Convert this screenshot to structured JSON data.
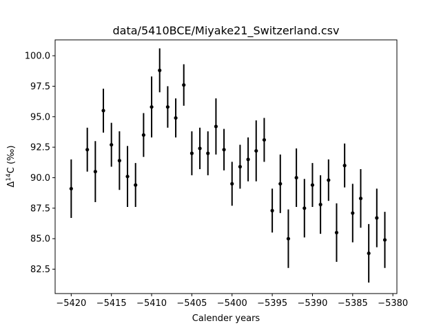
{
  "chart_data": {
    "type": "scatter",
    "title": "data/5410BCE/Miyake21_Switzerland.csv",
    "xlabel": "Calender years",
    "ylabel_parts": {
      "main": "Δ",
      "sup": "14",
      "rest": "C (‰)"
    },
    "xlim": [
      -5422,
      -5379.5
    ],
    "ylim": [
      80.5,
      101.3
    ],
    "xticks": [
      -5420,
      -5415,
      -5410,
      -5405,
      -5400,
      -5395,
      -5390,
      -5385,
      -5380
    ],
    "yticks": [
      82.5,
      85.0,
      87.5,
      90.0,
      92.5,
      95.0,
      97.5,
      100.0
    ],
    "xtick_labels": [
      "−5420",
      "−5415",
      "−5410",
      "−5405",
      "−5400",
      "−5395",
      "−5390",
      "−5385",
      "−5380"
    ],
    "ytick_labels": [
      "82.5",
      "85.0",
      "87.5",
      "90.0",
      "92.5",
      "95.0",
      "97.5",
      "100.0"
    ],
    "marker_color": "#000000",
    "grid": false,
    "points": [
      {
        "x": -5420,
        "y": 89.1,
        "err": 2.4
      },
      {
        "x": -5418,
        "y": 92.3,
        "err": 1.8
      },
      {
        "x": -5417,
        "y": 90.5,
        "err": 2.5
      },
      {
        "x": -5416,
        "y": 95.5,
        "err": 1.8
      },
      {
        "x": -5415,
        "y": 92.7,
        "err": 1.8
      },
      {
        "x": -5414,
        "y": 91.4,
        "err": 2.4
      },
      {
        "x": -5413,
        "y": 90.1,
        "err": 2.5
      },
      {
        "x": -5412,
        "y": 89.4,
        "err": 1.8
      },
      {
        "x": -5411,
        "y": 93.5,
        "err": 1.8
      },
      {
        "x": -5410,
        "y": 95.8,
        "err": 2.5
      },
      {
        "x": -5409,
        "y": 98.8,
        "err": 1.8
      },
      {
        "x": -5408,
        "y": 95.8,
        "err": 1.7
      },
      {
        "x": -5407,
        "y": 94.9,
        "err": 1.6
      },
      {
        "x": -5406,
        "y": 97.6,
        "err": 1.7
      },
      {
        "x": -5405,
        "y": 92.0,
        "err": 1.8
      },
      {
        "x": -5404,
        "y": 92.4,
        "err": 1.7
      },
      {
        "x": -5403,
        "y": 92.0,
        "err": 1.8
      },
      {
        "x": -5402,
        "y": 94.2,
        "err": 2.3
      },
      {
        "x": -5401,
        "y": 92.3,
        "err": 1.7
      },
      {
        "x": -5400,
        "y": 89.5,
        "err": 1.8
      },
      {
        "x": -5399,
        "y": 90.9,
        "err": 1.8
      },
      {
        "x": -5398,
        "y": 91.5,
        "err": 1.8
      },
      {
        "x": -5397,
        "y": 92.2,
        "err": 2.5
      },
      {
        "x": -5396,
        "y": 93.1,
        "err": 1.8
      },
      {
        "x": -5395,
        "y": 87.3,
        "err": 1.8
      },
      {
        "x": -5394,
        "y": 89.5,
        "err": 2.4
      },
      {
        "x": -5393,
        "y": 85.0,
        "err": 2.4
      },
      {
        "x": -5392,
        "y": 90.0,
        "err": 2.4
      },
      {
        "x": -5391,
        "y": 87.5,
        "err": 2.4
      },
      {
        "x": -5390,
        "y": 89.4,
        "err": 1.8
      },
      {
        "x": -5389,
        "y": 87.8,
        "err": 2.4
      },
      {
        "x": -5388,
        "y": 89.8,
        "err": 1.7
      },
      {
        "x": -5387,
        "y": 85.5,
        "err": 2.4
      },
      {
        "x": -5386,
        "y": 91.0,
        "err": 1.8
      },
      {
        "x": -5385,
        "y": 87.1,
        "err": 2.4
      },
      {
        "x": -5384,
        "y": 88.3,
        "err": 2.4
      },
      {
        "x": -5383,
        "y": 83.8,
        "err": 2.4
      },
      {
        "x": -5382,
        "y": 86.7,
        "err": 2.4
      },
      {
        "x": -5381,
        "y": 84.9,
        "err": 2.3
      }
    ]
  }
}
